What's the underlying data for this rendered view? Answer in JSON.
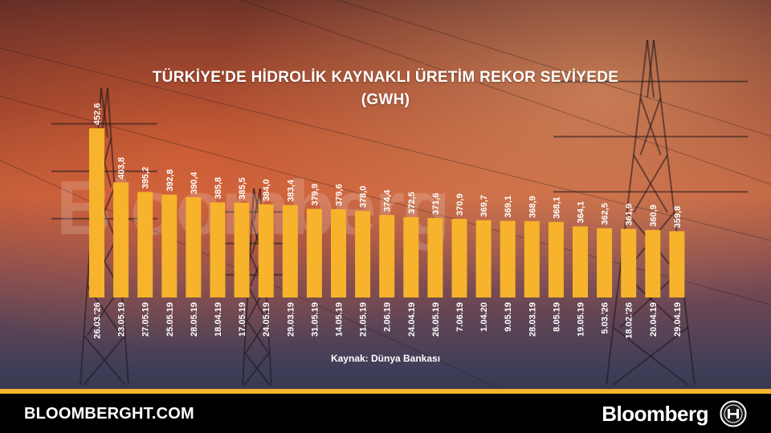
{
  "header": {
    "title_line1": "TÜRKİYE'DE HİDROLİK KAYNAKLI ÜRETİM REKOR SEVİYEDE",
    "title_line2": "(GWH)"
  },
  "source": "Kaynak: Dünya Bankası",
  "watermark": "Bloomberg",
  "footer": {
    "site": "BLOOMBERGHT.COM",
    "brand": "Bloomberg",
    "emblem_icon": "bloomberg-ht-emblem-icon"
  },
  "colors": {
    "bar": "#f6b32b",
    "accent": "#f6b32b",
    "footer_bg": "#000000"
  },
  "chart_data": {
    "type": "bar",
    "title": "TÜRKİYE'DE HİDROLİK KAYNAKLI ÜRETİM REKOR SEVİYEDE",
    "subtitle": "(GWH)",
    "categories": [
      "26.03.'26",
      "23.05.19",
      "27.05.19",
      "25.05.19",
      "28.05.19",
      "18.04.19",
      "17.05.19",
      "24.05.19",
      "29.03.19",
      "31.05.19",
      "14.05.19",
      "21.05.19",
      "2.06.19",
      "24.04.19",
      "26.05.19",
      "7.06.19",
      "1.04.20",
      "9.05.19",
      "28.03.19",
      "8.05.19",
      "19.05.19",
      "5.03.'26",
      "18.02.'26",
      "20.04.19",
      "29.04.19"
    ],
    "value_labels": [
      "452,6",
      "403,8",
      "395,2",
      "392,8",
      "390,4",
      "385,8",
      "385,5",
      "384,0",
      "383,4",
      "379,9",
      "379,6",
      "378,0",
      "374,4",
      "372,5",
      "371,6",
      "370,9",
      "369,7",
      "369,1",
      "368,9",
      "368,1",
      "364,1",
      "362,5",
      "361,9",
      "360,9",
      "359,8"
    ],
    "values": [
      452.6,
      403.8,
      395.2,
      392.8,
      390.4,
      385.8,
      385.5,
      384.0,
      383.4,
      379.9,
      379.6,
      378.0,
      374.4,
      372.5,
      371.6,
      370.9,
      369.7,
      369.1,
      368.9,
      368.1,
      364.1,
      362.5,
      361.9,
      360.9,
      359.8
    ],
    "grid": false,
    "axes_visible": false,
    "legend": "none"
  }
}
